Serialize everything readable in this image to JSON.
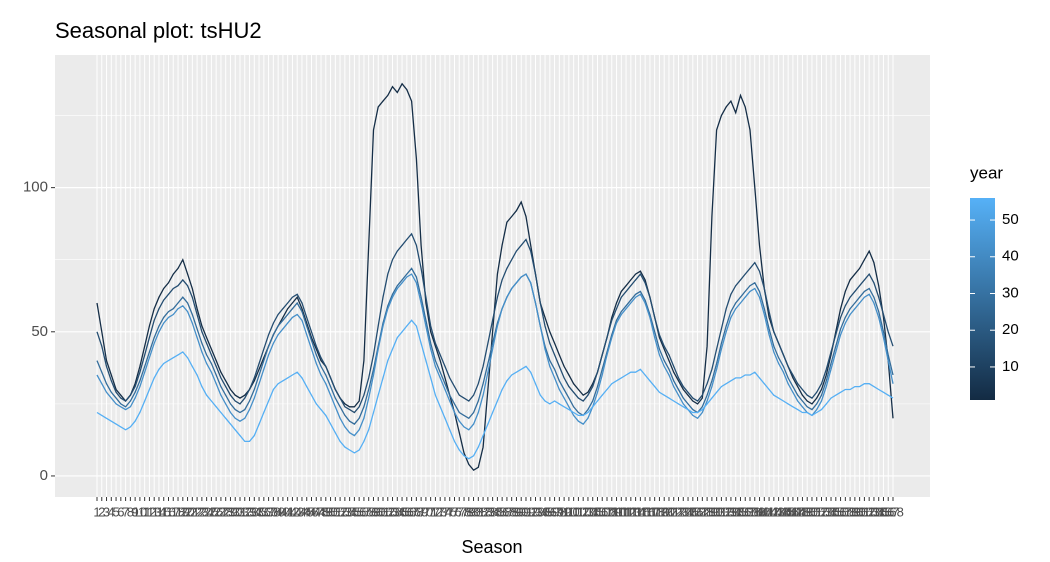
{
  "chart_data": {
    "type": "line",
    "title": "Seasonal plot: tsHU2",
    "x_label": "Season",
    "categories": [
      "1",
      "2",
      "3",
      "4",
      "5",
      "6",
      "7",
      "8",
      "9",
      "10",
      "11",
      "12",
      "13",
      "14",
      "15",
      "16",
      "17",
      "18",
      "19",
      "20",
      "21",
      "22",
      "23",
      "24",
      "25",
      "26",
      "27",
      "28",
      "29",
      "30",
      "31",
      "32",
      "33",
      "34",
      "35",
      "36",
      "37",
      "38",
      "39",
      "40",
      "41",
      "42",
      "43",
      "44",
      "45",
      "46",
      "47",
      "48",
      "49",
      "50",
      "51",
      "52",
      "53",
      "54",
      "55",
      "56",
      "57",
      "58",
      "59",
      "60",
      "61",
      "62",
      "63",
      "64",
      "65",
      "66",
      "67",
      "68",
      "69",
      "70",
      "71",
      "72",
      "73",
      "74",
      "75",
      "76",
      "77",
      "78",
      "79",
      "80",
      "81",
      "82",
      "83",
      "84",
      "85",
      "86",
      "87",
      "88",
      "89",
      "90",
      "91",
      "92",
      "93",
      "94",
      "95",
      "96",
      "97",
      "98",
      "99",
      "100",
      "101",
      "102",
      "103",
      "104",
      "105",
      "106",
      "107",
      "108",
      "109",
      "110",
      "111",
      "112",
      "113",
      "114",
      "115",
      "116",
      "117",
      "118",
      "119",
      "120",
      "121",
      "122",
      "123",
      "124",
      "125",
      "126",
      "127",
      "128",
      "129",
      "130",
      "131",
      "132",
      "133",
      "134",
      "135",
      "136",
      "137",
      "138",
      "139",
      "140",
      "141",
      "142",
      "143",
      "144",
      "145",
      "146",
      "147",
      "148",
      "149",
      "150",
      "151",
      "152",
      "153",
      "154",
      "155",
      "156",
      "157",
      "158",
      "159",
      "160",
      "161",
      "162",
      "163",
      "164",
      "165",
      "166",
      "167",
      "168"
    ],
    "ylim": [
      -7.3,
      146
    ],
    "yticks": [
      0,
      50,
      100
    ],
    "yminor": [
      25,
      75,
      125
    ],
    "grid": true,
    "legend": {
      "title": "year",
      "colors": [
        "#132B43",
        "#56B1F7"
      ],
      "lim": [
        1,
        56
      ],
      "ticks": [
        10,
        20,
        30,
        40,
        50
      ],
      "position": "right"
    },
    "series": [
      {
        "color": "#152e47",
        "values": [
          60,
          50,
          40,
          35,
          30,
          28,
          26,
          28,
          32,
          38,
          45,
          52,
          58,
          62,
          65,
          67,
          70,
          72,
          75,
          70,
          65,
          58,
          52,
          48,
          44,
          40,
          36,
          33,
          30,
          28,
          27,
          28,
          30,
          33,
          37,
          41,
          45,
          49,
          52,
          55,
          58,
          60,
          62,
          58,
          53,
          48,
          44,
          40,
          38,
          34,
          30,
          27,
          25,
          24,
          24,
          26,
          40,
          80,
          120,
          128,
          130,
          132,
          135,
          133,
          136,
          134,
          130,
          110,
          80,
          60,
          50,
          45,
          40,
          34,
          28,
          22,
          15,
          8,
          4,
          2,
          3,
          10,
          30,
          50,
          70,
          80,
          88,
          90,
          92,
          95,
          90,
          80,
          70,
          60,
          55,
          50,
          46,
          42,
          38,
          35,
          32,
          30,
          28,
          29,
          32,
          36,
          42,
          48,
          55,
          60,
          64,
          66,
          68,
          70,
          71,
          68,
          62,
          55,
          48,
          44,
          40,
          36,
          33,
          30,
          28,
          26,
          25,
          27,
          45,
          90,
          120,
          125,
          128,
          130,
          126,
          132,
          128,
          120,
          100,
          80,
          65,
          55,
          50,
          46,
          42,
          38,
          34,
          31,
          28,
          26,
          25,
          27,
          30,
          35,
          42,
          50,
          58,
          64,
          68,
          70,
          72,
          75,
          78,
          74,
          66,
          55,
          40,
          20
        ]
      },
      {
        "color": "#244d71",
        "values": [
          50,
          45,
          38,
          33,
          29,
          27,
          26,
          28,
          31,
          36,
          42,
          48,
          54,
          58,
          61,
          63,
          65,
          66,
          68,
          66,
          62,
          56,
          50,
          46,
          42,
          38,
          34,
          31,
          28,
          26,
          25,
          27,
          30,
          34,
          39,
          44,
          49,
          53,
          56,
          58,
          60,
          62,
          63,
          60,
          55,
          50,
          45,
          41,
          38,
          34,
          30,
          27,
          24,
          23,
          22,
          24,
          28,
          34,
          42,
          52,
          62,
          70,
          75,
          78,
          80,
          82,
          84,
          80,
          72,
          62,
          52,
          46,
          42,
          38,
          34,
          31,
          28,
          27,
          26,
          28,
          32,
          38,
          46,
          54,
          62,
          68,
          72,
          75,
          78,
          80,
          82,
          78,
          70,
          60,
          52,
          46,
          42,
          38,
          34,
          31,
          29,
          27,
          26,
          28,
          31,
          36,
          42,
          48,
          54,
          58,
          62,
          64,
          66,
          68,
          70,
          67,
          62,
          55,
          49,
          45,
          42,
          38,
          34,
          31,
          29,
          27,
          26,
          28,
          32,
          37,
          44,
          51,
          58,
          63,
          66,
          68,
          70,
          72,
          74,
          71,
          65,
          57,
          50,
          46,
          42,
          38,
          35,
          32,
          30,
          28,
          27,
          29,
          32,
          37,
          43,
          49,
          55,
          59,
          62,
          64,
          66,
          68,
          70,
          67,
          62,
          56,
          50,
          45
        ]
      },
      {
        "color": "#346d9b",
        "values": [
          40,
          36,
          32,
          29,
          27,
          25,
          24,
          26,
          29,
          33,
          38,
          43,
          48,
          52,
          55,
          57,
          58,
          60,
          62,
          60,
          56,
          51,
          46,
          42,
          39,
          35,
          31,
          28,
          25,
          23,
          22,
          23,
          26,
          30,
          35,
          40,
          45,
          49,
          52,
          54,
          56,
          58,
          60,
          57,
          52,
          47,
          42,
          38,
          35,
          31,
          27,
          24,
          21,
          19,
          18,
          20,
          24,
          30,
          37,
          45,
          53,
          59,
          63,
          66,
          68,
          70,
          72,
          69,
          62,
          54,
          46,
          40,
          36,
          32,
          28,
          25,
          22,
          21,
          20,
          22,
          26,
          32,
          39,
          46,
          53,
          58,
          62,
          65,
          67,
          69,
          70,
          67,
          60,
          52,
          45,
          40,
          37,
          33,
          30,
          27,
          24,
          22,
          21,
          23,
          26,
          31,
          37,
          43,
          49,
          54,
          57,
          59,
          61,
          63,
          64,
          61,
          56,
          50,
          44,
          40,
          37,
          33,
          30,
          27,
          25,
          23,
          22,
          24,
          28,
          33,
          39,
          46,
          52,
          57,
          60,
          62,
          64,
          66,
          67,
          64,
          58,
          51,
          45,
          41,
          38,
          34,
          31,
          28,
          26,
          24,
          23,
          25,
          28,
          33,
          39,
          45,
          51,
          55,
          58,
          60,
          62,
          64,
          65,
          62,
          57,
          50,
          42,
          35
        ]
      },
      {
        "color": "#458fc9",
        "values": [
          35,
          32,
          29,
          27,
          25,
          24,
          23,
          24,
          27,
          31,
          36,
          41,
          46,
          50,
          53,
          55,
          56,
          58,
          59,
          57,
          53,
          48,
          43,
          39,
          36,
          32,
          28,
          25,
          22,
          20,
          19,
          20,
          23,
          27,
          32,
          37,
          42,
          46,
          49,
          51,
          53,
          55,
          56,
          54,
          49,
          44,
          39,
          35,
          32,
          28,
          24,
          20,
          17,
          15,
          14,
          16,
          20,
          27,
          35,
          44,
          52,
          58,
          62,
          65,
          67,
          69,
          70,
          67,
          60,
          52,
          44,
          38,
          34,
          30,
          26,
          22,
          19,
          17,
          16,
          18,
          22,
          28,
          36,
          44,
          52,
          58,
          62,
          65,
          67,
          69,
          70,
          67,
          60,
          52,
          44,
          38,
          34,
          30,
          27,
          24,
          21,
          19,
          18,
          20,
          24,
          29,
          35,
          42,
          48,
          53,
          56,
          58,
          60,
          62,
          63,
          60,
          55,
          48,
          42,
          38,
          35,
          31,
          28,
          25,
          23,
          21,
          20,
          22,
          26,
          31,
          37,
          44,
          50,
          55,
          58,
          60,
          62,
          64,
          65,
          62,
          56,
          49,
          43,
          39,
          36,
          32,
          29,
          26,
          24,
          22,
          21,
          23,
          26,
          31,
          37,
          43,
          49,
          53,
          56,
          58,
          60,
          62,
          63,
          60,
          55,
          48,
          40,
          32
        ]
      },
      {
        "color": "#55aff4",
        "values": [
          22,
          21,
          20,
          19,
          18,
          17,
          16,
          17,
          19,
          22,
          26,
          30,
          34,
          37,
          39,
          40,
          41,
          42,
          43,
          41,
          38,
          35,
          31,
          28,
          26,
          24,
          22,
          20,
          18,
          16,
          14,
          12,
          12,
          14,
          18,
          22,
          26,
          30,
          32,
          33,
          34,
          35,
          36,
          34,
          31,
          28,
          25,
          23,
          21,
          18,
          15,
          12,
          10,
          9,
          8,
          9,
          12,
          16,
          22,
          28,
          34,
          40,
          44,
          48,
          50,
          52,
          54,
          52,
          46,
          40,
          34,
          28,
          24,
          20,
          16,
          12,
          9,
          7,
          6,
          7,
          10,
          14,
          18,
          22,
          26,
          30,
          33,
          35,
          36,
          37,
          38,
          36,
          32,
          28,
          26,
          25,
          26,
          25,
          24,
          23,
          22,
          21,
          21,
          22,
          24,
          26,
          28,
          30,
          32,
          33,
          34,
          35,
          36,
          36,
          37,
          35,
          33,
          31,
          29,
          28,
          27,
          26,
          25,
          24,
          23,
          22,
          22,
          23,
          25,
          27,
          29,
          31,
          32,
          33,
          34,
          34,
          35,
          35,
          36,
          34,
          32,
          30,
          28,
          27,
          26,
          25,
          24,
          23,
          22,
          22,
          21,
          22,
          23,
          25,
          27,
          28,
          29,
          30,
          30,
          31,
          31,
          32,
          32,
          31,
          30,
          29,
          28,
          27
        ]
      }
    ]
  }
}
